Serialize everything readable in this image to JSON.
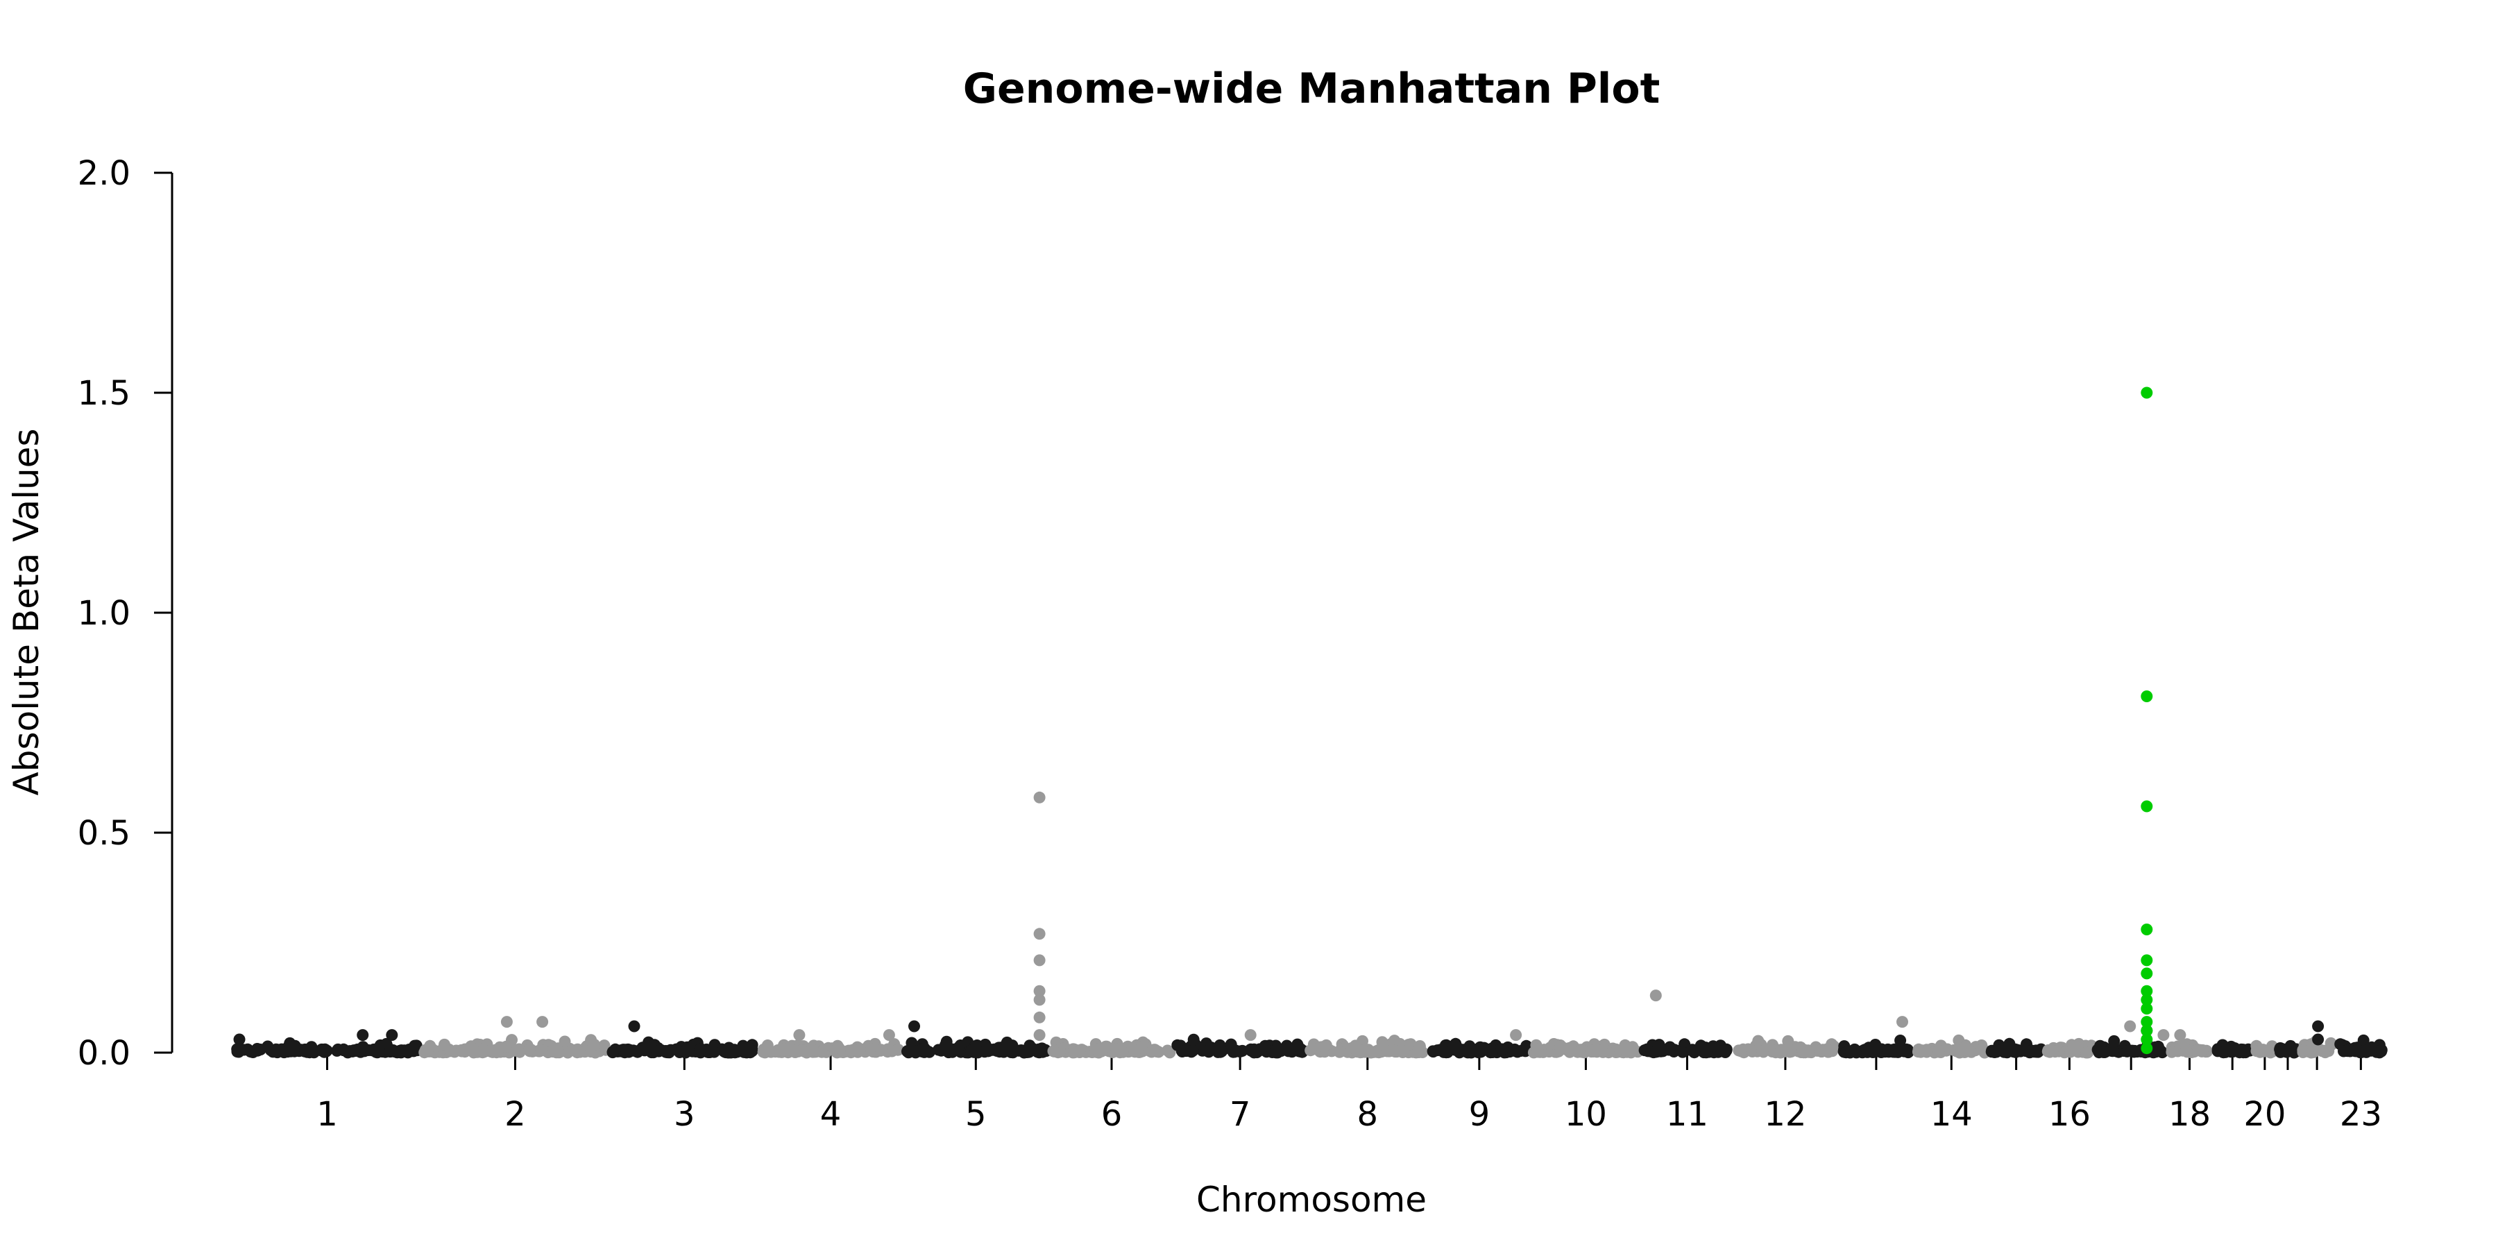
{
  "chart_data": {
    "type": "scatter",
    "title": "Genome-wide Manhattan Plot",
    "xlabel": "Chromosome",
    "ylabel": "Absolute Beta Values",
    "ylim": [
      0,
      2.0
    ],
    "yticks": [
      "0.0",
      "0.5",
      "1.0",
      "1.5",
      "2.0"
    ],
    "xtick_labels": [
      "1",
      "2",
      "3",
      "4",
      "5",
      "6",
      "7",
      "8",
      "9",
      "10",
      "11",
      "12",
      "14",
      "16",
      "18",
      "20",
      "23"
    ],
    "grid": false,
    "legend": "none",
    "colors": {
      "odd_chromosome": "#1a1a1a",
      "even_chromosome": "#999999",
      "highlight": "#00cc00"
    },
    "chromosomes": [
      {
        "chr": "1",
        "label": "1",
        "start": 0.0,
        "end": 9.0
      },
      {
        "chr": "2",
        "label": "2",
        "start": 9.0,
        "end": 18.0
      },
      {
        "chr": "3",
        "label": "3",
        "start": 18.0,
        "end": 25.2
      },
      {
        "chr": "4",
        "label": "4",
        "start": 25.2,
        "end": 32.0
      },
      {
        "chr": "5",
        "label": "5",
        "start": 32.0,
        "end": 39.1
      },
      {
        "chr": "6",
        "label": "6",
        "start": 39.1,
        "end": 45.0
      },
      {
        "chr": "7",
        "label": "7",
        "start": 45.0,
        "end": 51.4
      },
      {
        "chr": "8",
        "label": "8",
        "start": 51.4,
        "end": 57.2
      },
      {
        "chr": "9",
        "label": "9",
        "start": 57.2,
        "end": 62.1
      },
      {
        "chr": "10",
        "label": "10",
        "start": 62.1,
        "end": 67.4
      },
      {
        "chr": "11",
        "label": "11",
        "start": 67.4,
        "end": 71.8
      },
      {
        "chr": "12",
        "label": "12",
        "start": 71.8,
        "end": 76.8
      },
      {
        "chr": "13",
        "label": "",
        "start": 76.8,
        "end": 80.5
      },
      {
        "chr": "14",
        "label": "14",
        "start": 80.5,
        "end": 84.0
      },
      {
        "chr": "15",
        "label": "",
        "start": 84.0,
        "end": 86.7
      },
      {
        "chr": "16",
        "label": "16",
        "start": 86.7,
        "end": 89.1
      },
      {
        "chr": "17",
        "label": "",
        "start": 89.1,
        "end": 92.6
      },
      {
        "chr": "18",
        "label": "18",
        "start": 92.6,
        "end": 94.7
      },
      {
        "chr": "19",
        "label": "",
        "start": 94.7,
        "end": 96.7
      },
      {
        "chr": "20",
        "label": "20",
        "start": 96.7,
        "end": 97.8
      },
      {
        "chr": "21",
        "label": "",
        "start": 97.8,
        "end": 98.9
      },
      {
        "chr": "22",
        "label": "",
        "start": 98.9,
        "end": 100.6
      },
      {
        "chr": "23",
        "label": "23",
        "start": 100.6,
        "end": 103.1
      }
    ],
    "notable_points": [
      {
        "chr": "1",
        "x": 0.3,
        "y": 0.03
      },
      {
        "chr": "1",
        "x": 6.2,
        "y": 0.04
      },
      {
        "chr": "1",
        "x": 7.6,
        "y": 0.04
      },
      {
        "chr": "2",
        "x": 13.1,
        "y": 0.07
      },
      {
        "chr": "2",
        "x": 14.8,
        "y": 0.07
      },
      {
        "chr": "3",
        "x": 19.2,
        "y": 0.06
      },
      {
        "chr": "4",
        "x": 27.1,
        "y": 0.04
      },
      {
        "chr": "4",
        "x": 31.4,
        "y": 0.04
      },
      {
        "chr": "5",
        "x": 32.6,
        "y": 0.06
      },
      {
        "chr": "6",
        "x": 38.6,
        "y": 0.58
      },
      {
        "chr": "6",
        "x": 38.6,
        "y": 0.27
      },
      {
        "chr": "6",
        "x": 38.6,
        "y": 0.21
      },
      {
        "chr": "6",
        "x": 38.6,
        "y": 0.14
      },
      {
        "chr": "6",
        "x": 38.6,
        "y": 0.12
      },
      {
        "chr": "6",
        "x": 38.6,
        "y": 0.08
      },
      {
        "chr": "6",
        "x": 38.6,
        "y": 0.04
      },
      {
        "chr": "8",
        "x": 48.7,
        "y": 0.04
      },
      {
        "chr": "10",
        "x": 61.4,
        "y": 0.04
      },
      {
        "chr": "12",
        "x": 68.1,
        "y": 0.13
      },
      {
        "chr": "16",
        "x": 79.9,
        "y": 0.07
      },
      {
        "chr": "18",
        "x": 90.8,
        "y": 0.06
      },
      {
        "chr": "19",
        "x": 91.6,
        "y": 0.05
      },
      {
        "chr": "20",
        "x": 92.4,
        "y": 0.04
      },
      {
        "chr": "20",
        "x": 93.2,
        "y": 0.04
      },
      {
        "chr": "23",
        "x": 99.8,
        "y": 0.06
      },
      {
        "chr": "23",
        "x": 99.8,
        "y": 0.03
      }
    ],
    "highlight_points": [
      {
        "chr": "19",
        "x": 91.6,
        "y": 1.5
      },
      {
        "chr": "19",
        "x": 91.6,
        "y": 0.81
      },
      {
        "chr": "19",
        "x": 91.6,
        "y": 0.56
      },
      {
        "chr": "19",
        "x": 91.6,
        "y": 0.28
      },
      {
        "chr": "19",
        "x": 91.6,
        "y": 0.21
      },
      {
        "chr": "19",
        "x": 91.6,
        "y": 0.18
      },
      {
        "chr": "19",
        "x": 91.6,
        "y": 0.14
      },
      {
        "chr": "19",
        "x": 91.6,
        "y": 0.12
      },
      {
        "chr": "19",
        "x": 91.6,
        "y": 0.1
      },
      {
        "chr": "19",
        "x": 91.6,
        "y": 0.07
      },
      {
        "chr": "19",
        "x": 91.6,
        "y": 0.05
      },
      {
        "chr": "19",
        "x": 91.6,
        "y": 0.03
      },
      {
        "chr": "19",
        "x": 91.6,
        "y": 0.01
      }
    ]
  }
}
